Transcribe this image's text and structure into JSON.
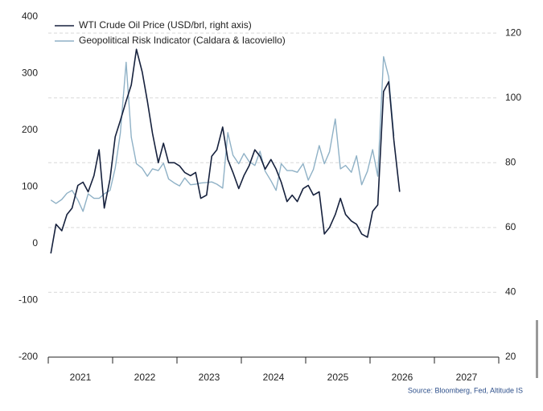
{
  "chart_data": {
    "type": "line",
    "source": "Source: Bloomberg, Fed, Altitude IS",
    "categories": [
      "2021",
      "2022",
      "2023",
      "2024",
      "2025",
      "2026",
      "2027"
    ],
    "x": [
      2021.04,
      2021.12,
      2021.21,
      2021.29,
      2021.37,
      2021.46,
      2021.54,
      2021.62,
      2021.71,
      2021.79,
      2021.87,
      2021.96,
      2022.04,
      2022.12,
      2022.21,
      2022.29,
      2022.37,
      2022.46,
      2022.54,
      2022.62,
      2022.71,
      2022.79,
      2022.87,
      2022.96,
      2023.04,
      2023.12,
      2023.21,
      2023.29,
      2023.37,
      2023.46,
      2023.54,
      2023.62,
      2023.71,
      2023.79,
      2023.87,
      2023.96,
      2024.04,
      2024.12,
      2024.21,
      2024.29,
      2024.37,
      2024.46,
      2024.54,
      2024.62,
      2024.71,
      2024.79,
      2024.87,
      2024.96,
      2025.04,
      2025.12,
      2025.21,
      2025.29,
      2025.37,
      2025.46,
      2025.54,
      2025.62,
      2025.71,
      2025.79,
      2025.87,
      2025.96,
      2026.04,
      2026.12,
      2026.21,
      2026.29,
      2026.37,
      2026.46
    ],
    "series": [
      {
        "name": "WTI Crude Oil Price (USD/brl, right axis)",
        "color": "#16213d",
        "axis": "y2",
        "values": [
          52,
          61,
          59,
          64,
          66,
          73,
          74,
          71,
          76,
          84,
          66,
          75,
          88,
          93,
          99,
          104,
          115,
          108,
          99,
          89,
          80,
          86,
          80,
          80,
          79,
          77,
          76,
          77,
          69,
          70,
          82,
          84,
          91,
          81,
          77,
          72,
          76,
          79,
          84,
          82,
          78,
          81,
          78,
          74,
          68,
          70,
          68,
          72,
          73,
          70,
          71,
          58,
          60,
          64,
          69,
          64,
          62,
          61,
          58,
          57,
          65,
          67,
          102,
          105,
          87,
          71
        ]
      },
      {
        "name": "Geopolitical Risk Indicator (Caldara & Iacoviello)",
        "color": "#8fb1c6",
        "values": [
          77,
          71,
          78,
          89,
          94,
          77,
          57,
          88,
          80,
          80,
          88,
          94,
          133,
          195,
          320,
          188,
          141,
          133,
          119,
          132,
          129,
          142,
          114,
          107,
          102,
          116,
          104,
          105,
          107,
          108,
          109,
          105,
          98,
          196,
          156,
          141,
          159,
          145,
          138,
          163,
          128,
          111,
          94,
          141,
          129,
          129,
          126,
          141,
          112,
          131,
          173,
          141,
          162,
          220,
          132,
          138,
          126,
          155,
          104,
          128,
          166,
          119,
          330,
          294,
          190,
          null
        ]
      }
    ],
    "xlim": [
      2021,
      2028
    ],
    "xticks": [
      2021,
      2022,
      2023,
      2024,
      2025,
      2026,
      2027,
      2028
    ],
    "ylim": [
      -200,
      400
    ],
    "yticks": [
      -200,
      -100,
      0,
      100,
      200,
      300,
      400
    ],
    "y2lim": [
      20,
      125
    ],
    "y2ticks": [
      20,
      40,
      60,
      80,
      100,
      120
    ],
    "grid": true,
    "legend": "top-left"
  }
}
